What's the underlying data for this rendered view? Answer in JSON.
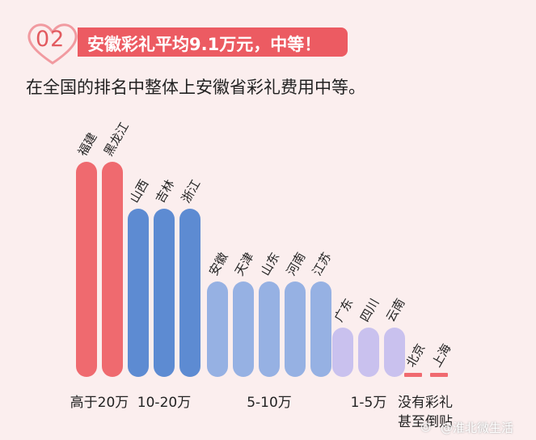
{
  "banner": {
    "number": "02",
    "title": "安徽彩礼平均9.1万元，中等！"
  },
  "subtitle": "在全国的排名中整体上安徽省彩礼费用中等。",
  "watermark": "@淮北微生活",
  "chart_data": {
    "type": "bar",
    "title": "",
    "xlabel": "",
    "ylabel": "",
    "groups": [
      {
        "label": "高于20万",
        "color": "#ef6a6f",
        "level": 4,
        "provinces": [
          "福建",
          "黑龙江"
        ]
      },
      {
        "label": "10-20万",
        "color": "#5d8bd2",
        "level": 3,
        "provinces": [
          "山西",
          "吉林",
          "浙江"
        ]
      },
      {
        "label": "5-10万",
        "color": "#96b1e3",
        "level": 2,
        "provinces": [
          "安徽",
          "天津",
          "山东",
          "河南",
          "江苏"
        ]
      },
      {
        "label": "1-5万",
        "color": "#c9c1ee",
        "level": 1,
        "provinces": [
          "广东",
          "四川",
          "云南"
        ]
      },
      {
        "label": "没有彩礼甚至倒贴",
        "color": "#f06a70",
        "level": 0,
        "provinces": [
          "北京",
          "上海"
        ]
      }
    ]
  }
}
